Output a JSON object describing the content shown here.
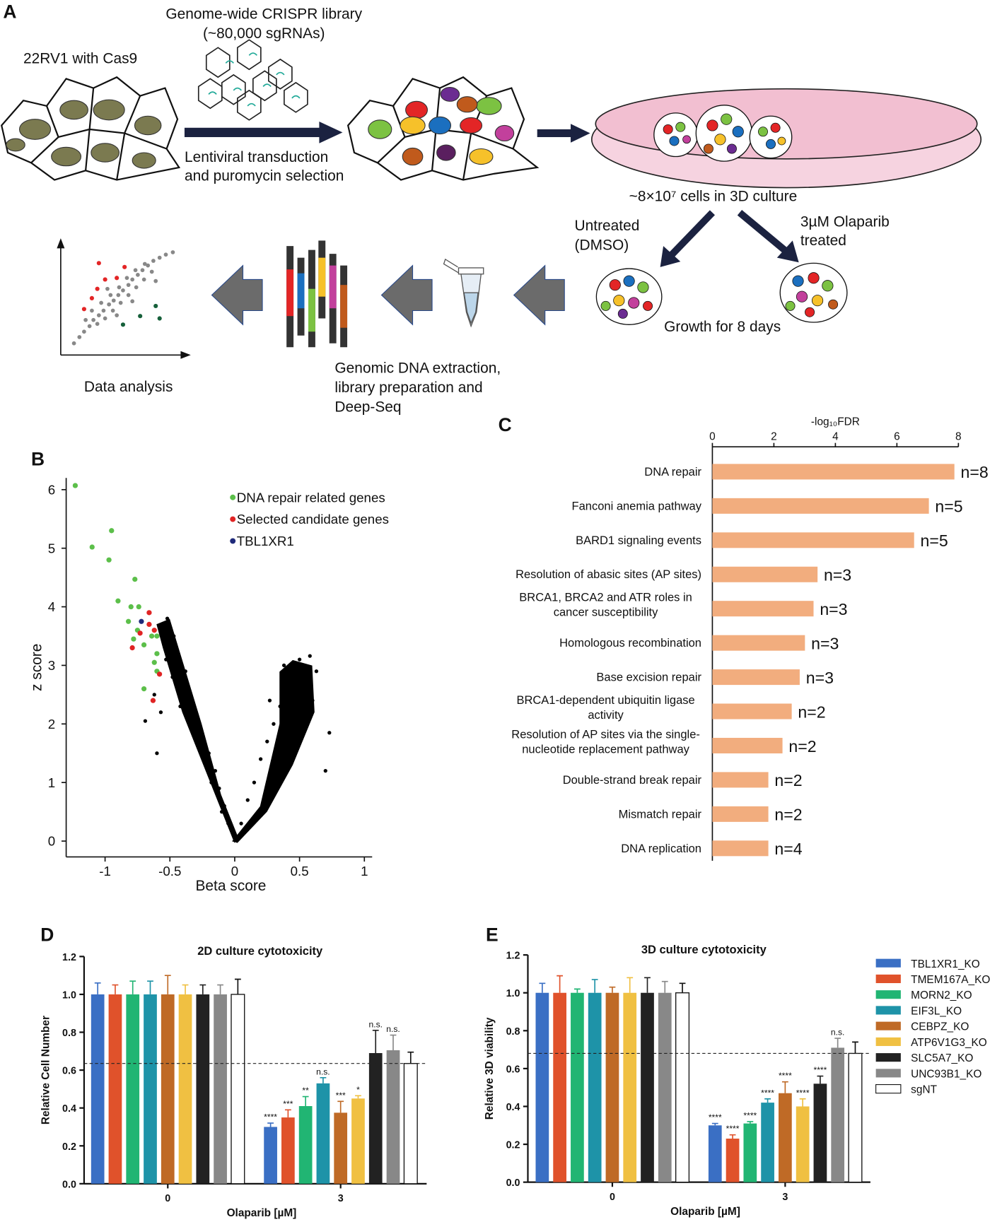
{
  "panel_labels": [
    "A",
    "B",
    "C",
    "D",
    "E"
  ],
  "diagram": {
    "library": [
      "Genome-wide CRISPR library",
      "(~80,000 sgRNAs)"
    ],
    "cell_line": "22RV1 with Cas9",
    "transduction": [
      "Lentiviral transduction",
      "and puromycin selection"
    ],
    "culture": "~8×10⁷ cells in 3D culture",
    "untreated": [
      "Untreated",
      "(DMSO)"
    ],
    "treated": [
      "3µM Olaparib",
      "treated"
    ],
    "growth": "Growth for 8 days",
    "extraction": [
      "Genomic DNA extraction,",
      "library preparation and",
      "Deep-Seq"
    ],
    "analysis": "Data analysis"
  },
  "chart_data": [
    {
      "type": "scatter",
      "xlabel": "Beta score",
      "ylabel": "z score",
      "xlim": [
        -1.3,
        1.06
      ],
      "ylim": [
        -0.27,
        6.2
      ],
      "xticks": [
        -1,
        -0.5,
        0,
        0.5,
        1
      ],
      "yticks": [
        0,
        1,
        2,
        3,
        4,
        5,
        6
      ],
      "legend": "upper right",
      "series": [
        {
          "color": "#000000",
          "x": [
            -0.05,
            -0.08,
            -0.12,
            -0.15,
            -0.2,
            -0.25,
            -0.3,
            -0.35,
            -0.4,
            -0.45,
            -0.5,
            -0.55,
            -0.1,
            -0.18,
            -0.28,
            -0.33,
            -0.42,
            -0.48,
            -0.53,
            -0.38,
            -0.47,
            -0.52,
            -0.6,
            -0.69,
            -0.62,
            -0.57,
            0.05,
            0.1,
            0.15,
            0.2,
            0.25,
            0.3,
            0.35,
            0.4,
            0.45,
            0.5,
            0.55,
            0.6,
            0.5,
            0.42,
            0.32,
            0.63,
            0.73,
            0.7,
            0.58,
            0.27,
            0.38
          ],
          "values": [
            0.3,
            0.6,
            0.9,
            1.2,
            1.5,
            1.8,
            2.1,
            2.4,
            2.7,
            3.0,
            3.3,
            3.6,
            0.5,
            1.0,
            1.6,
            1.9,
            2.3,
            2.8,
            3.1,
            2.9,
            3.5,
            3.8,
            1.5,
            2.05,
            2.5,
            2.2,
            0.3,
            0.7,
            1.0,
            1.4,
            1.7,
            2.0,
            2.3,
            2.6,
            2.9,
            3.1,
            2.7,
            2.4,
            2.0,
            1.6,
            1.2,
            2.9,
            1.85,
            1.2,
            3.16,
            2.4,
            3.0
          ]
        },
        {
          "name": "DNA repair related genes",
          "color": "#5cbf4a",
          "x": [
            -1.23,
            -1.1,
            -0.95,
            -0.97,
            -0.77,
            -0.9,
            -0.8,
            -0.74,
            -0.82,
            -0.75,
            -0.6,
            -0.78,
            -0.7,
            -0.6,
            -0.62,
            -0.6,
            -0.7,
            -0.64
          ],
          "values": [
            6.07,
            5.02,
            5.3,
            4.8,
            4.47,
            4.1,
            4.0,
            4.0,
            3.75,
            3.6,
            3.5,
            3.45,
            3.35,
            3.2,
            3.05,
            2.9,
            2.6,
            3.5
          ]
        },
        {
          "name": "Selected candidate genes",
          "color": "#e02424",
          "x": [
            -0.66,
            -0.66,
            -0.62,
            -0.73,
            -0.79,
            -0.58,
            -0.63
          ],
          "values": [
            3.9,
            3.7,
            3.6,
            3.55,
            3.3,
            2.85,
            2.4
          ]
        },
        {
          "name": "TBL1XR1",
          "color": "#1f2a7a",
          "x": [
            -0.72
          ],
          "values": [
            3.75
          ]
        }
      ]
    },
    {
      "type": "bar",
      "horizontal": true,
      "xlabel": "-log₁₀FDR",
      "xlim": [
        0,
        8
      ],
      "xticks": [
        0,
        2,
        4,
        6,
        8
      ],
      "color": "#f2ad7e",
      "categories": [
        "DNA repair",
        "Fanconi anemia pathway",
        "BARD1 signaling events",
        "Resolution of abasic sites (AP sites)",
        [
          "BRCA1, BRCA2 and ATR roles in",
          "cancer susceptibility"
        ],
        "Homologous recombination",
        "Base excision repair",
        [
          "BRCA1-dependent ubiquitin ligase",
          "activity"
        ],
        [
          "Resolution of AP sites via the single-",
          "nucleotide replacement pathway"
        ],
        "Double-strand break repair",
        "Mismatch repair",
        "DNA replication"
      ],
      "values": [
        7.87,
        7.04,
        6.56,
        3.42,
        3.29,
        3.01,
        2.84,
        2.58,
        2.28,
        1.82,
        1.82,
        1.82
      ],
      "annotations": [
        "n=8",
        "n=5",
        "n=5",
        "n=3",
        "n=3",
        "n=3",
        "n=3",
        "n=2",
        "n=2",
        "n=2",
        "n=2",
        "n=4"
      ]
    },
    {
      "type": "grouped_bar",
      "title": "2D culture cytotoxicity",
      "xlabel": "Olaparib [µM]",
      "ylabel": "Relative Cell Number",
      "categories": [
        "0",
        "3"
      ],
      "ylim": [
        0,
        1.2
      ],
      "yticks": [
        {
          "value": 0,
          "label": "0.0"
        },
        0.2,
        0.4,
        0.6,
        0.8,
        {
          "value": 1,
          "label": "1.0"
        },
        1.2
      ],
      "reference_line": 0.635,
      "series": [
        {
          "name": "TBL1XR1_KO",
          "color": "#3a6fc4",
          "values": [
            1,
            0.3
          ],
          "errors": [
            0.06,
            0.02
          ],
          "annotations": [
            null,
            "****"
          ]
        },
        {
          "name": "TMEM167A_KO",
          "color": "#e0522b",
          "values": [
            1,
            0.35
          ],
          "errors": [
            0.05,
            0.04
          ],
          "annotations": [
            null,
            "***"
          ]
        },
        {
          "name": "MORN2_KO",
          "color": "#21b573",
          "values": [
            1,
            0.41
          ],
          "errors": [
            0.07,
            0.05
          ],
          "annotations": [
            null,
            "**"
          ]
        },
        {
          "name": "EIF3L_KO",
          "color": "#1e93a8",
          "values": [
            1,
            0.53
          ],
          "errors": [
            0.07,
            0.03
          ],
          "annotations": [
            null,
            "n.s."
          ]
        },
        {
          "name": "CEBPZ_KO",
          "color": "#bf6a26",
          "values": [
            1,
            0.375
          ],
          "errors": [
            0.1,
            0.06
          ],
          "annotations": [
            null,
            "***"
          ]
        },
        {
          "name": "ATP6V1G3_KO",
          "color": "#f0c042",
          "values": [
            1,
            0.45
          ],
          "errors": [
            0.05,
            0.015
          ],
          "annotations": [
            null,
            "*"
          ]
        },
        {
          "name": "SLC5A7_KO",
          "color": "#222222",
          "values": [
            1,
            0.69
          ],
          "errors": [
            0.05,
            0.12
          ],
          "annotations": [
            null,
            "n.s."
          ]
        },
        {
          "name": "UNC93B1_KO",
          "color": "#888888",
          "values": [
            1,
            0.705
          ],
          "errors": [
            0.05,
            0.08
          ],
          "annotations": [
            null,
            "n.s."
          ]
        },
        {
          "name": "sgNT",
          "color": "#ffffff",
          "values": [
            1,
            0.635
          ],
          "errors": [
            0.08,
            0.06
          ],
          "annotations": [
            null,
            null
          ]
        }
      ]
    },
    {
      "type": "grouped_bar",
      "title": "3D culture cytotoxicity",
      "xlabel": "Olaparib [µM]",
      "ylabel": "Relative 3D viability",
      "categories": [
        "0",
        "3"
      ],
      "ylim": [
        0,
        1.2
      ],
      "yticks": [
        {
          "value": 0,
          "label": "0.0"
        },
        0.2,
        0.4,
        0.6,
        0.8,
        {
          "value": 1,
          "label": "1.0"
        },
        1.2
      ],
      "reference_line": 0.68,
      "legend": "right",
      "series": [
        {
          "name": "TBL1XR1_KO",
          "color": "#3a6fc4",
          "values": [
            1,
            0.3
          ],
          "errors": [
            0.05,
            0.01
          ],
          "annotations": [
            null,
            "****"
          ]
        },
        {
          "name": "TMEM167A_KO",
          "color": "#e0522b",
          "values": [
            1,
            0.23
          ],
          "errors": [
            0.09,
            0.02
          ],
          "annotations": [
            null,
            "****"
          ]
        },
        {
          "name": "MORN2_KO",
          "color": "#21b573",
          "values": [
            1,
            0.31
          ],
          "errors": [
            0.02,
            0.01
          ],
          "annotations": [
            null,
            "****"
          ]
        },
        {
          "name": "EIF3L_KO",
          "color": "#1e93a8",
          "values": [
            1,
            0.42
          ],
          "errors": [
            0.07,
            0.02
          ],
          "annotations": [
            null,
            "****"
          ]
        },
        {
          "name": "CEBPZ_KO",
          "color": "#bf6a26",
          "values": [
            1,
            0.47
          ],
          "errors": [
            0.03,
            0.06
          ],
          "annotations": [
            null,
            "****"
          ]
        },
        {
          "name": "ATP6V1G3_KO",
          "color": "#f0c042",
          "values": [
            1,
            0.4
          ],
          "errors": [
            0.08,
            0.04
          ],
          "annotations": [
            null,
            "****"
          ]
        },
        {
          "name": "SLC5A7_KO",
          "color": "#222222",
          "values": [
            1,
            0.52
          ],
          "errors": [
            0.08,
            0.04
          ],
          "annotations": [
            null,
            "****"
          ]
        },
        {
          "name": "UNC93B1_KO",
          "color": "#888888",
          "values": [
            1,
            0.71
          ],
          "errors": [
            0.06,
            0.05
          ],
          "annotations": [
            null,
            "n.s."
          ]
        },
        {
          "name": "sgNT",
          "color": "#ffffff",
          "values": [
            1,
            0.68
          ],
          "errors": [
            0.05,
            0.06
          ],
          "annotations": [
            null,
            null
          ]
        }
      ]
    }
  ]
}
